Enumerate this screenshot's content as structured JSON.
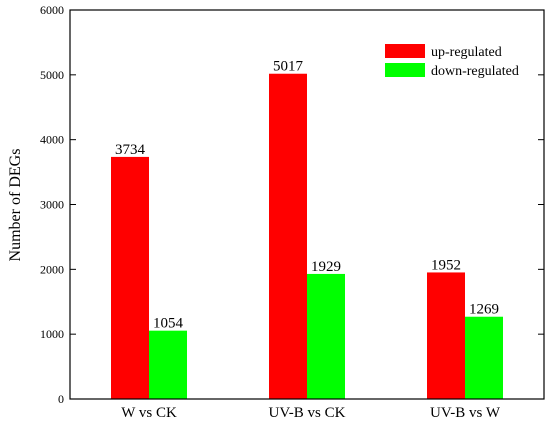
{
  "chart_data": {
    "type": "bar",
    "title": "",
    "xlabel": "",
    "ylabel": "Number of DEGs",
    "ylim": [
      0,
      6000
    ],
    "yticks": [
      0,
      1000,
      2000,
      3000,
      4000,
      5000,
      6000
    ],
    "grid": false,
    "legend_position": "top-right",
    "categories": [
      "W vs CK",
      "UV-B vs CK",
      "UV-B vs W"
    ],
    "series": [
      {
        "name": "up-regulated",
        "color": "#ff0000",
        "values": [
          3734,
          5017,
          1952
        ]
      },
      {
        "name": "down-regulated",
        "color": "#00ff00",
        "values": [
          1054,
          1929,
          1269
        ]
      }
    ]
  }
}
